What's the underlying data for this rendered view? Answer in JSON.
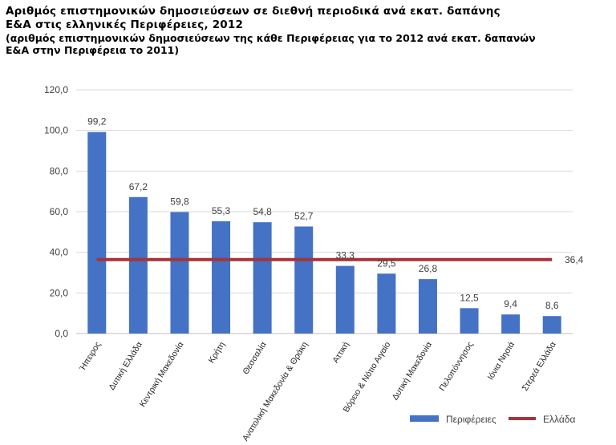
{
  "header": {
    "title_line1": "Αριθμός επιστημονικών δημοσιεύσεων σε διεθνή περιοδικά ανά εκατ. δαπάνης",
    "title_line2": "Ε&Α στις ελληνικές Περιφέρειες, 2012",
    "subtitle_line1": "(αριθμός επιστημονικών δημοσιεύσεων της κάθε Περιφέρειας για το 2012 ανά εκατ. δαπανών",
    "subtitle_line2": "Ε&Α στην Περιφέρεια το 2011)"
  },
  "chart_data": {
    "type": "bar",
    "title": "Αριθμός επιστημονικών δημοσιεύσεων σε διεθνή περιοδικά ανά εκατ. δαπάνης Ε&Α στις ελληνικές Περιφέρειες, 2012",
    "categories": [
      "Ήπειρος",
      "Δυτική Ελλάδα",
      "Κεντρική Μακεδονία",
      "Κρήτη",
      "Θεσσαλία",
      "Ανατολική Μακεδονία & Θράκη",
      "Αττική",
      "Βόρειο & Νότιο Αιγαίο",
      "Δυτική Μακεδονία",
      "Πελοπόννησος",
      "Ιόνια Νησιά",
      "Στερεά Ελλάδα"
    ],
    "series": [
      {
        "name": "Περιφέρειες",
        "type": "bar",
        "color": "#4472C4",
        "values": [
          99.2,
          67.2,
          59.8,
          55.3,
          54.8,
          52.7,
          33.3,
          29.5,
          26.8,
          12.5,
          9.4,
          8.6
        ]
      },
      {
        "name": "Ελλάδα",
        "type": "line",
        "color": "#A5343A",
        "value": 36.4
      }
    ],
    "value_labels": [
      "99,2",
      "67,2",
      "59,8",
      "55,3",
      "54,8",
      "52,7",
      "33,3",
      "29,5",
      "26,8",
      "12,5",
      "9,4",
      "8,6"
    ],
    "reference_label": "36,4",
    "ylim": [
      0,
      120
    ],
    "yticks": [
      0,
      20,
      40,
      60,
      80,
      100,
      120
    ],
    "ytick_labels": [
      "0,0",
      "20,0",
      "40,0",
      "60,0",
      "80,0",
      "100,0",
      "120,0"
    ],
    "xlabel": "",
    "ylabel": "",
    "grid": true,
    "legend_position": "bottom-right"
  }
}
